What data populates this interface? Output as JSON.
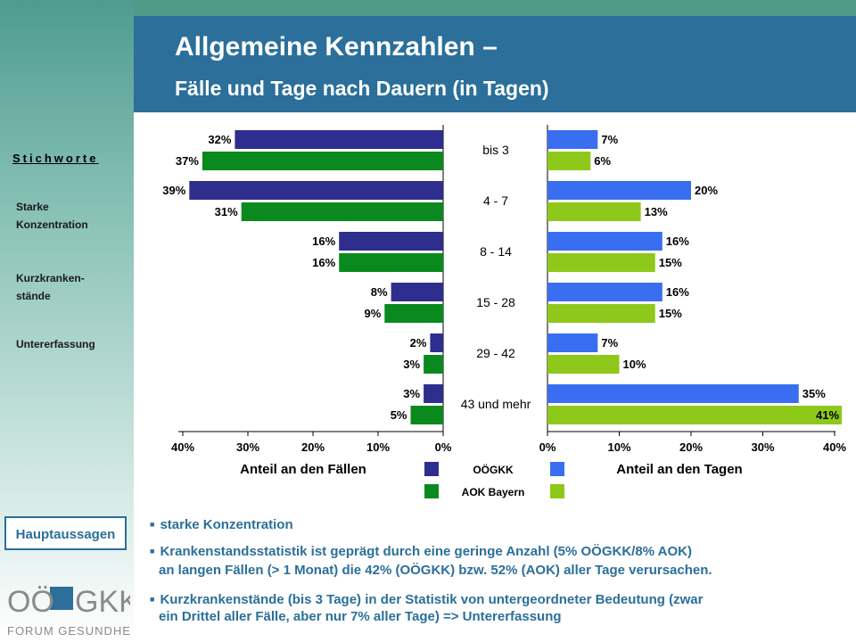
{
  "title": {
    "line1": "Allgemeine Kennzahlen –",
    "line2": "Fälle und Tage nach Dauern (in Tagen)"
  },
  "sidebar": {
    "heading": "Stichworte",
    "items": [
      {
        "label": "Starke\nKonzentration"
      },
      {
        "label": "Kurzkranken-\nstände"
      },
      {
        "label": "Untererfassung"
      }
    ],
    "hauptaussagen": "Hauptaussagen",
    "logo": {
      "top": "OÖGKK",
      "bottom": "FORUM GESUNDHEIT"
    }
  },
  "colors": {
    "oegkk_cases": "#2e2e8f",
    "aok_cases": "#0a8a1e",
    "oegkk_days": "#3a6ef0",
    "aok_days": "#8ec81a",
    "accent": "#2b6f9a"
  },
  "chart_data": [
    {
      "type": "bar",
      "orientation": "horizontal",
      "direction": "right-to-left",
      "xlabel": "Anteil an den Fällen",
      "xlim": [
        0,
        40
      ],
      "ticks": [
        "40%",
        "30%",
        "20%",
        "10%",
        "0%"
      ],
      "categories": [
        "bis 3",
        "4 - 7",
        "8 - 14",
        "15 - 28",
        "29 - 42",
        "43 und mehr"
      ],
      "series": [
        {
          "name": "OÖGKK",
          "values": [
            32,
            39,
            16,
            8,
            2,
            3
          ]
        },
        {
          "name": "AOK Bayern",
          "values": [
            37,
            31,
            16,
            9,
            3,
            5
          ]
        }
      ]
    },
    {
      "type": "bar",
      "orientation": "horizontal",
      "xlabel": "Anteil an den Tagen",
      "xlim": [
        0,
        40
      ],
      "ticks": [
        "0%",
        "10%",
        "20%",
        "30%",
        "40%"
      ],
      "categories": [
        "bis 3",
        "4 - 7",
        "8 - 14",
        "15 - 28",
        "29 - 42",
        "43 und mehr"
      ],
      "series": [
        {
          "name": "OÖGKK",
          "values": [
            7,
            20,
            16,
            16,
            7,
            35
          ]
        },
        {
          "name": "AOK Bayern",
          "values": [
            6,
            13,
            15,
            15,
            10,
            41
          ]
        }
      ]
    }
  ],
  "legend": {
    "oegkk": "OÖGKK",
    "aok": "AOK Bayern"
  },
  "bullets": [
    {
      "lines": [
        "starke Konzentration"
      ]
    },
    {
      "lines": [
        "Krankenstandsstatistik ist geprägt durch eine geringe Anzahl (5% OÖGKK/8% AOK)",
        "an langen Fällen (> 1 Monat) die 42% (OÖGKK) bzw. 52% (AOK) aller Tage verursachen."
      ]
    },
    {
      "lines": [
        "Kurzkrankenstände (bis 3 Tage) in der Statistik von untergeordneter Bedeutung (zwar",
        "ein Drittel aller Fälle, aber nur 7% aller Tage) => Untererfassung"
      ]
    }
  ]
}
